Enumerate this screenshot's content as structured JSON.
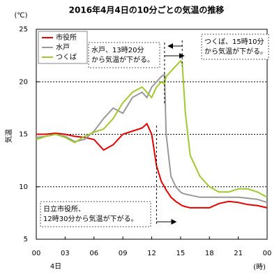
{
  "chart_data": {
    "type": "line",
    "title": "2016年4月4日の10分ごとの気温の推移",
    "y_unit": "(℃)",
    "y_label": "気温",
    "x_unit": "(時)",
    "x_sublabel": "4日",
    "x": [
      0,
      1,
      2,
      3,
      4,
      5,
      6,
      7,
      8,
      9,
      10,
      11,
      11.5,
      12,
      12.5,
      13,
      13.33,
      13.5,
      14,
      14.5,
      15,
      15.17,
      15.5,
      16,
      17,
      18,
      19,
      20,
      21,
      22,
      23,
      24
    ],
    "series": [
      {
        "name": "市役所",
        "color": "#e00000",
        "values": [
          15,
          15,
          15.1,
          15,
          14.8,
          14.7,
          14.5,
          13.5,
          14,
          15,
          15.3,
          15.6,
          16,
          15,
          12,
          10.5,
          10,
          9.7,
          9,
          8.6,
          8.3,
          8.2,
          8.1,
          8,
          8,
          8,
          8.4,
          8.6,
          8.5,
          8.3,
          8.2,
          8
        ]
      },
      {
        "name": "水戸",
        "color": "#999999",
        "values": [
          14.7,
          14.8,
          15,
          14.8,
          14.3,
          14.5,
          15.3,
          16.5,
          17.5,
          17,
          18.5,
          19,
          18.5,
          19.5,
          20,
          20.5,
          20.7,
          15,
          11,
          10,
          9.5,
          9.4,
          9.3,
          9.2,
          9,
          9,
          9,
          9,
          9,
          8.9,
          8.8,
          8.5
        ]
      },
      {
        "name": "つくば",
        "color": "#a0c830",
        "values": [
          14.5,
          14.8,
          15,
          14.7,
          14.2,
          14.8,
          15.2,
          15.5,
          16.5,
          18,
          19,
          19.5,
          19,
          18.5,
          19.5,
          20,
          19.8,
          20.5,
          21,
          21.5,
          22,
          21.8,
          17,
          13,
          11,
          10,
          9.5,
          9.5,
          9.8,
          9.8,
          9.5,
          9
        ]
      }
    ],
    "xlim": [
      0,
      24
    ],
    "xticks": [
      {
        "value": 0,
        "label": "00"
      },
      {
        "value": 3,
        "label": "03"
      },
      {
        "value": 6,
        "label": "06"
      },
      {
        "value": 9,
        "label": "09"
      },
      12,
      15,
      18,
      21,
      {
        "value": 24,
        "label": "00"
      }
    ],
    "ylim": [
      5,
      25
    ],
    "yticks": [
      5,
      10,
      15,
      20,
      25
    ],
    "grid": true,
    "annotations": [
      {
        "lines": [
          "水戸、13時20分",
          "から気温が下がる。"
        ],
        "at": 13.33
      },
      {
        "lines": [
          "つくば、15時10分",
          "から気温が下がる。"
        ],
        "at": 15.17
      },
      {
        "lines": [
          "日立市役所、",
          "12時30分から気温が下がる。"
        ],
        "at": 12.5
      }
    ]
  }
}
